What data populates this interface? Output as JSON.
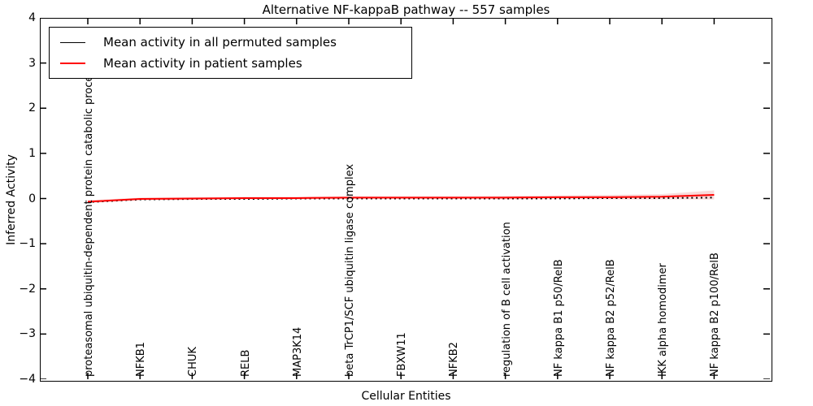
{
  "figure": {
    "title": "Alternative NF-kappaB pathway -- 557 samples",
    "xlabel": "Cellular Entities",
    "ylabel": "Inferred Activity"
  },
  "colors": {
    "frame": "#000000",
    "permuted_line": "#000000",
    "patient_line": "#ff0000",
    "band_fill": "rgba(215,60,60,0.18)"
  },
  "chart_data": {
    "type": "line",
    "title": "Alternative NF-kappaB pathway -- 557 samples",
    "xlabel": "Cellular Entities",
    "ylabel": "Inferred Activity",
    "ylim": [
      -4,
      4
    ],
    "yticks": [
      4,
      3,
      2,
      1,
      0,
      -1,
      -2,
      -3,
      -4
    ],
    "grid": false,
    "legend_position": "upper left",
    "categories": [
      "proteasomal ubiquitin-dependent protein catabolic process",
      "NFKB1",
      "CHUK",
      "RELB",
      "MAP3K14",
      "beta TrCP1/SCF ubiquitin ligase complex",
      "FBXW11",
      "NFKB2",
      "regulation of B cell activation",
      "NF kappa B1 p50/RelB",
      "NF kappa B2 p52/RelB",
      "IKK alpha homodimer",
      "NF kappa B2 p100/RelB"
    ],
    "series": [
      {
        "name": "Mean activity in all permuted samples",
        "color": "#000000",
        "linestyle_on_plot": "dotted",
        "values": [
          -0.08,
          -0.02,
          -0.01,
          -0.01,
          0.0,
          0.0,
          0.0,
          0.0,
          0.0,
          0.0,
          0.01,
          0.01,
          0.02
        ]
      },
      {
        "name": "Mean activity in patient samples",
        "color": "#ff0000",
        "linestyle_on_plot": "solid",
        "values": [
          -0.07,
          -0.01,
          0.0,
          0.01,
          0.01,
          0.02,
          0.02,
          0.02,
          0.02,
          0.03,
          0.03,
          0.04,
          0.08
        ]
      }
    ],
    "band": {
      "around_series": "Mean activity in patient samples",
      "half_width": [
        0.03,
        0.03,
        0.03,
        0.03,
        0.03,
        0.03,
        0.03,
        0.03,
        0.04,
        0.04,
        0.05,
        0.06,
        0.1
      ]
    }
  }
}
